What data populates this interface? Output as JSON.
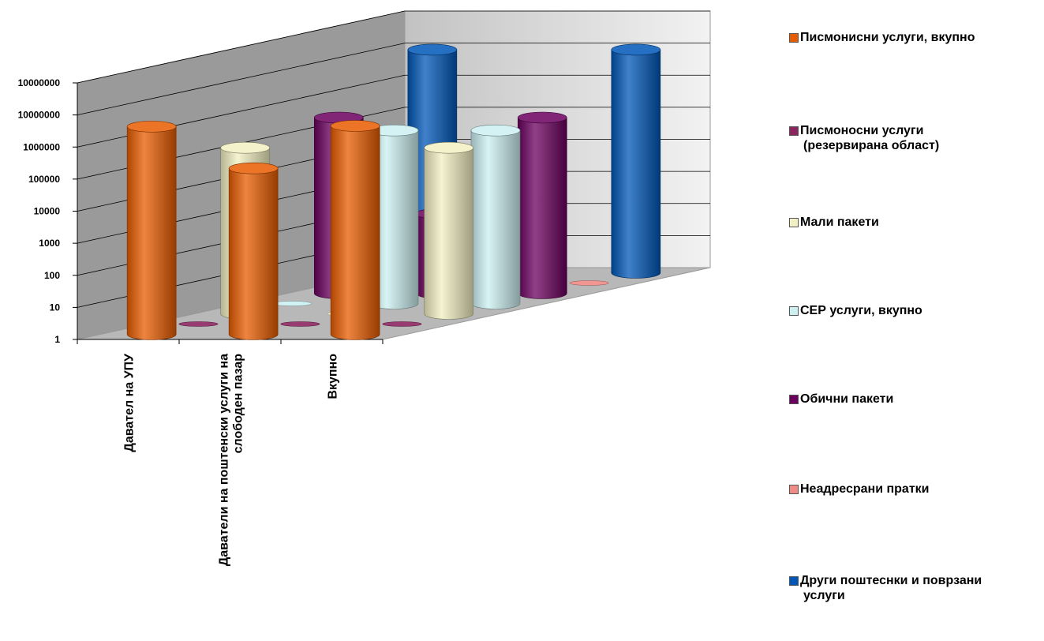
{
  "chart_data": {
    "type": "bar",
    "bar_shape": "cylinder-3d",
    "y_scale": "log",
    "ylim": [
      1,
      10000000
    ],
    "y_ticks": [
      "1",
      "10",
      "100",
      "1000",
      "10000",
      "100000",
      "1000000",
      "10000000",
      "10000000"
    ],
    "grid": true,
    "legend_position": "right",
    "title": "",
    "xlabel": "",
    "ylabel": "",
    "categories": [
      "Давател на УПУ",
      "Даватели на поштенски услуги на слободен пазар",
      "Вкупно"
    ],
    "category_lines": [
      [
        "Давател на УПУ"
      ],
      [
        "Даватели на поштенски услуги на",
        "слободен пазар"
      ],
      [
        "Вкупно"
      ]
    ],
    "series": [
      {
        "name": "Писмонисни услуги, вкупно",
        "color": "#E85C00",
        "values": [
          3000000,
          150000,
          3150000
        ]
      },
      {
        "name": "Писмоносни услуги (резервирана област)",
        "color": "#8B2560",
        "values": [
          1,
          1,
          1
        ]
      },
      {
        "name": "Мали пакети",
        "color": "#F2F0C2",
        "values": [
          150000,
          1,
          150000
        ]
      },
      {
        "name": "СЕР услуги, вкупно",
        "color": "#CCF0F2",
        "values": [
          1,
          250000,
          250000
        ]
      },
      {
        "name": "Обични пакети",
        "color": "#6B005E",
        "values": [
          300000,
          300,
          300000
        ]
      },
      {
        "name": "Неадресрани пратки",
        "color": "#F08A86",
        "values": [
          1,
          1,
          1
        ]
      },
      {
        "name": "Други поштеснки и поврзани услуги",
        "color": "#0057B8",
        "values": [
          9000000,
          1,
          9000000
        ]
      }
    ]
  },
  "legend": {
    "items": [
      {
        "lines": [
          "Писмонисни услуги, вкупно"
        ],
        "color": "#E85C00"
      },
      {
        "lines": [
          "Писмоносни услуги",
          "(резервирана област)"
        ],
        "color": "#8B2560"
      },
      {
        "lines": [
          "Мали пакети"
        ],
        "color": "#F2F0C2"
      },
      {
        "lines": [
          "СЕР услуги, вкупно"
        ],
        "color": "#CCF0F2"
      },
      {
        "lines": [
          "Обични пакети"
        ],
        "color": "#6B005E"
      },
      {
        "lines": [
          "Неадресрани пратки"
        ],
        "color": "#F08A86"
      },
      {
        "lines": [
          "Други поштеснки и поврзани",
          "услуги"
        ],
        "color": "#0057B8"
      }
    ]
  }
}
